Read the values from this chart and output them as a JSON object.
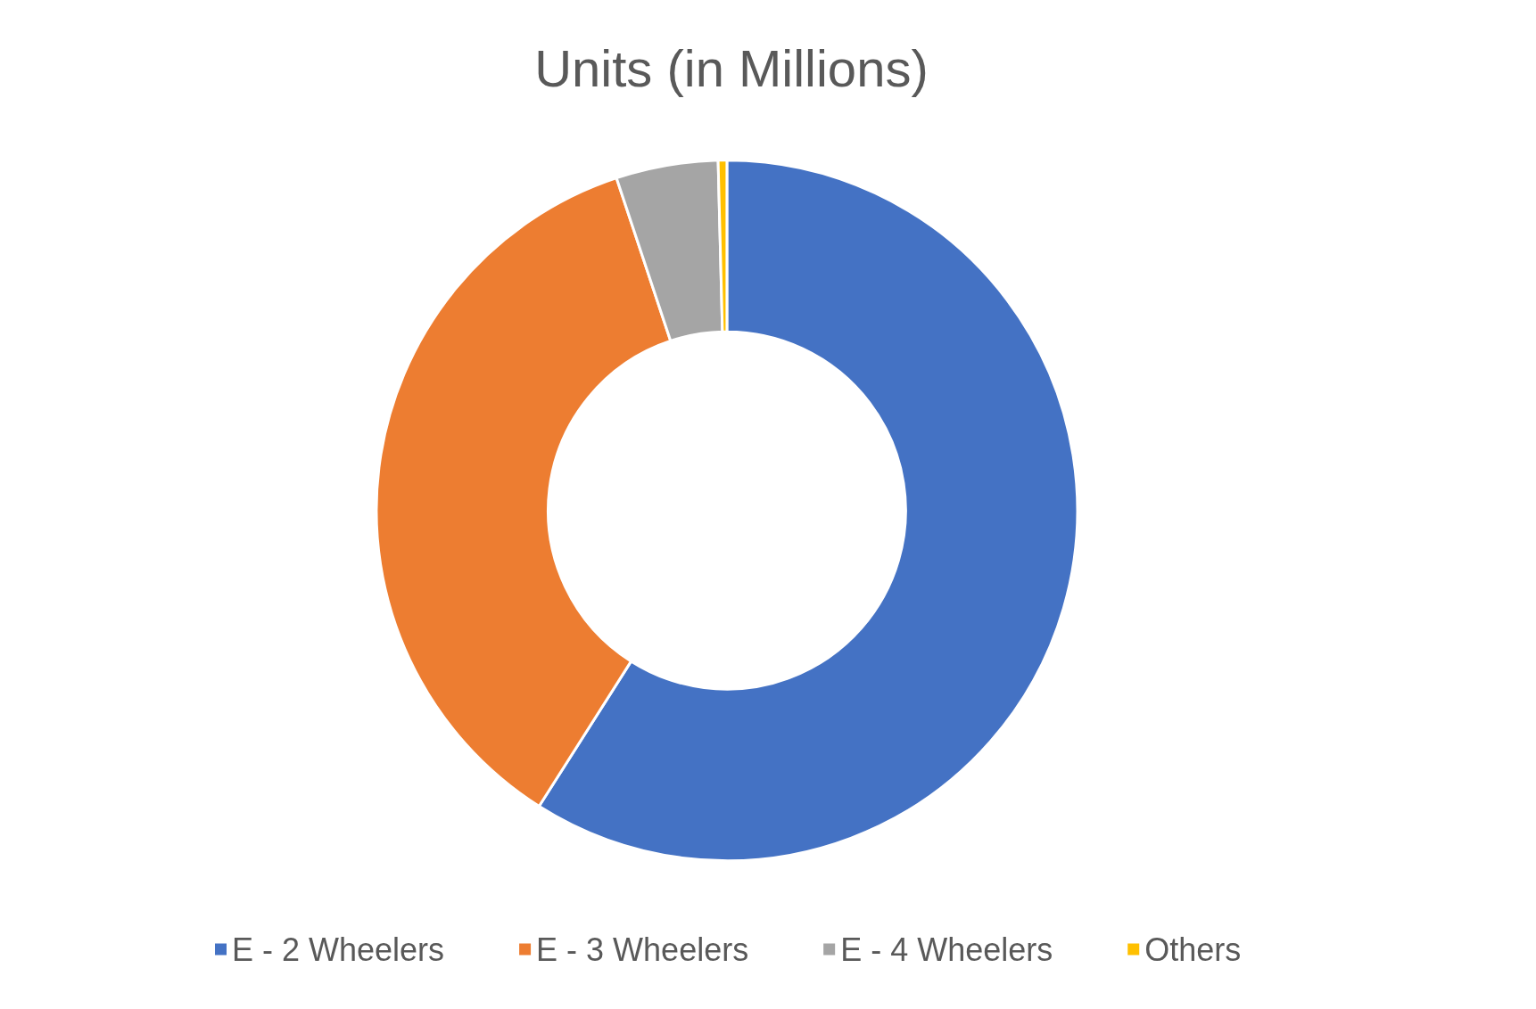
{
  "chart_data": {
    "type": "donut",
    "title": "Units (in Millions)",
    "categories": [
      "E - 2 Wheelers",
      "E - 3 Wheelers",
      "E - 4 Wheelers",
      "Others"
    ],
    "values": [
      59.0,
      35.9,
      4.7,
      0.4
    ],
    "colors": [
      "#4472c4",
      "#ed7d31",
      "#a5a5a5",
      "#ffc000"
    ],
    "legend": "bottom"
  }
}
